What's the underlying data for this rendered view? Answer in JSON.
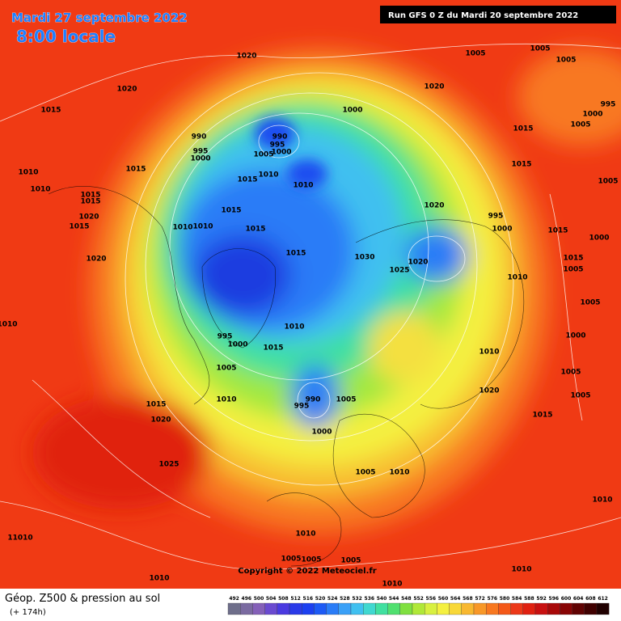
{
  "header": {
    "date": "Mardi 27 septembre 2022",
    "time": "8:00 locale",
    "run": "Run GFS 0 Z du Mardi 20 septembre 2022"
  },
  "map": {
    "pressure_labels": [
      "1020",
      "1005",
      "1005",
      "1005",
      "1020",
      "1020",
      "995",
      "1000",
      "1015",
      "1000",
      "1015",
      "1005",
      "990",
      "990",
      "995",
      "1000",
      "995",
      "1005",
      "1000",
      "1015",
      "1015",
      "1010",
      "1015",
      "1010",
      "1010",
      "1005",
      "1010",
      "1015",
      "1015",
      "1020",
      "1020",
      "995",
      "1015",
      "1015",
      "1000",
      "1010",
      "1010",
      "1015",
      "1015",
      "1000",
      "1015",
      "1030",
      "1020",
      "1020",
      "1015",
      "1025",
      "1010",
      "1005",
      "1005",
      "1010",
      "1010",
      "995",
      "1000",
      "1015",
      "1010",
      "1000",
      "1005",
      "1005",
      "990",
      "995",
      "1005",
      "1010",
      "1020",
      "1005",
      "1015",
      "1020",
      "1015",
      "1000",
      "1025",
      "1005",
      "1010",
      "1010",
      "1010",
      "11010",
      "1005",
      "1005",
      "1005",
      "1010",
      "1010",
      "1010"
    ],
    "copyright": "Copyright © 2022 Meteociel.fr"
  },
  "footer": {
    "title": "Géop. Z500 & pression au sol",
    "lead": "(+ 174h)"
  },
  "legend": {
    "scale": [
      "492",
      "496",
      "500",
      "504",
      "508",
      "512",
      "516",
      "520",
      "524",
      "528",
      "532",
      "536",
      "540",
      "544",
      "548",
      "552",
      "556",
      "560",
      "564",
      "568",
      "572",
      "576",
      "580",
      "584",
      "588",
      "592",
      "596",
      "600",
      "604",
      "608",
      "612"
    ],
    "colors": [
      "#6e6e8a",
      "#7a6aa0",
      "#8460b8",
      "#6a4ad0",
      "#4a3ae0",
      "#2a3ae8",
      "#1c40f0",
      "#1d5af5",
      "#2a7cf7",
      "#3aa0f7",
      "#40c0f0",
      "#40d8d0",
      "#40e0a0",
      "#50e070",
      "#80e040",
      "#b0e838",
      "#d8f040",
      "#f4f040",
      "#f8d838",
      "#f8b830",
      "#f89828",
      "#f87820",
      "#f45818",
      "#ec3818",
      "#e02010",
      "#c81010",
      "#a80808",
      "#880404",
      "#600202",
      "#400000",
      "#200000"
    ]
  }
}
